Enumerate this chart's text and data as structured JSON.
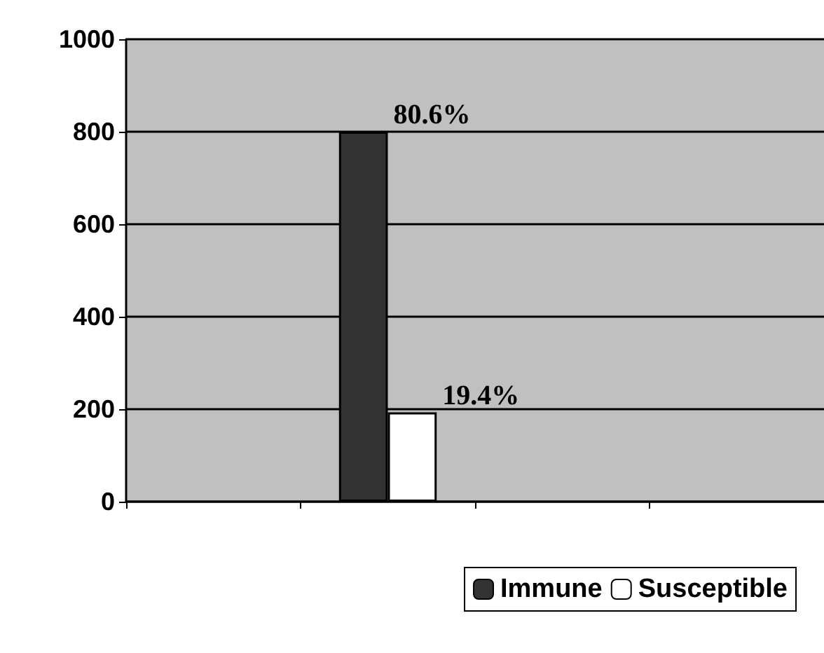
{
  "chart_data": {
    "type": "bar",
    "categories": [
      null,
      null,
      null,
      null
    ],
    "series": [
      {
        "name": "Immune",
        "color": "#333333",
        "values": [
          null,
          800,
          null,
          null
        ]
      },
      {
        "name": "Susceptible",
        "color": "#ffffff",
        "values": [
          null,
          193,
          null,
          null
        ]
      }
    ],
    "annotations": [
      "80.6%",
      "19.4%"
    ],
    "ylim": [
      0,
      1000
    ],
    "yticks": [
      0,
      200,
      400,
      600,
      800,
      1000
    ],
    "grid": "y",
    "legend": "bottom right"
  }
}
